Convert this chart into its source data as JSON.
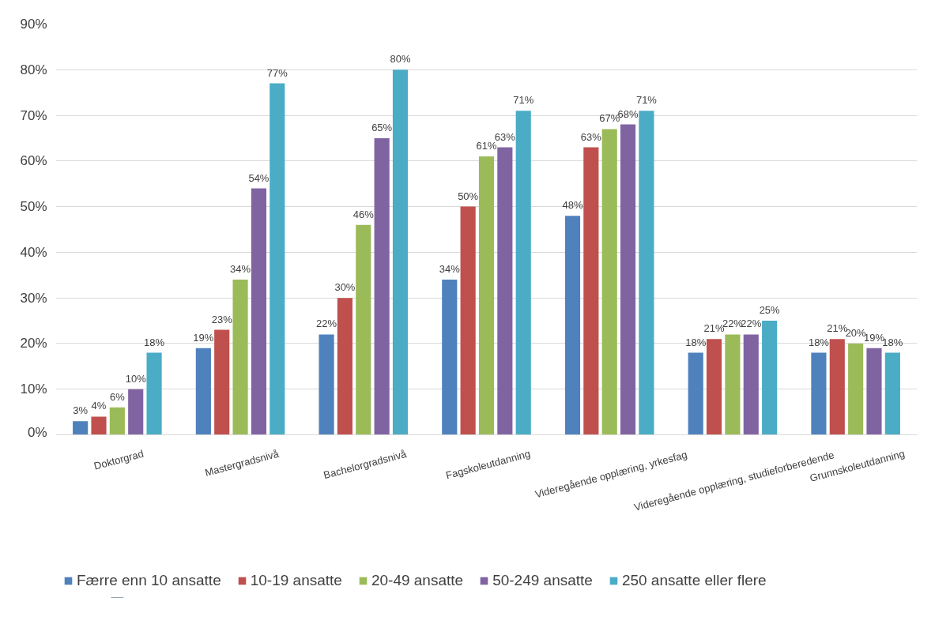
{
  "chart_data": {
    "type": "bar",
    "categories": [
      "Doktorgrad",
      "Mastergradsnivå",
      "Bachelorgradsnivå",
      "Fagskoleutdanning",
      "Videregående opplæring, yrkesfag",
      "Videregående opplæring, studieforberedende",
      "Grunnskoleutdanning"
    ],
    "series": [
      {
        "name": "Færre enn 10 ansatte",
        "color": "#4f81bd",
        "values": [
          3,
          19,
          22,
          34,
          48,
          18,
          18
        ],
        "value_labels": [
          "3%",
          "19%",
          "22%",
          "34%",
          "48%",
          "18%",
          "18%"
        ]
      },
      {
        "name": "10-19 ansatte",
        "color": "#c0504d",
        "values": [
          4,
          23,
          30,
          50,
          63,
          21,
          21
        ],
        "value_labels": [
          "4%",
          "23%",
          "30%",
          "50%",
          "63%",
          "21%",
          "21%"
        ]
      },
      {
        "name": "20-49 ansatte",
        "color": "#9bbb59",
        "values": [
          6,
          34,
          46,
          61,
          67,
          22,
          20
        ],
        "value_labels": [
          "6%",
          "34%",
          "46%",
          "61%",
          "67%",
          "22%",
          "20%"
        ]
      },
      {
        "name": "50-249 ansatte",
        "color": "#8064a2",
        "values": [
          10,
          54,
          65,
          63,
          68,
          22,
          19
        ],
        "value_labels": [
          "10%",
          "54%",
          "65%",
          "63%",
          "68%",
          "22%",
          "19%"
        ]
      },
      {
        "name": "250 ansatte eller flere",
        "color": "#4bacc6",
        "values": [
          18,
          77,
          80,
          71,
          71,
          25,
          18
        ],
        "value_labels": [
          "18%",
          "77%",
          "80%",
          "71%",
          "71%",
          "25%",
          "18%"
        ]
      }
    ],
    "ylim": [
      0,
      90
    ],
    "yticks": [
      {
        "value": 0,
        "label": "0%"
      },
      {
        "value": 10,
        "label": "10%"
      },
      {
        "value": 20,
        "label": "20%"
      },
      {
        "value": 30,
        "label": "30%"
      },
      {
        "value": 40,
        "label": "40%"
      },
      {
        "value": 50,
        "label": "50%"
      },
      {
        "value": 60,
        "label": "60%"
      },
      {
        "value": 70,
        "label": "70%"
      },
      {
        "value": 80,
        "label": "80%"
      },
      {
        "value": 90,
        "label": "90%"
      }
    ],
    "grid": "y",
    "legend": "bottom"
  }
}
